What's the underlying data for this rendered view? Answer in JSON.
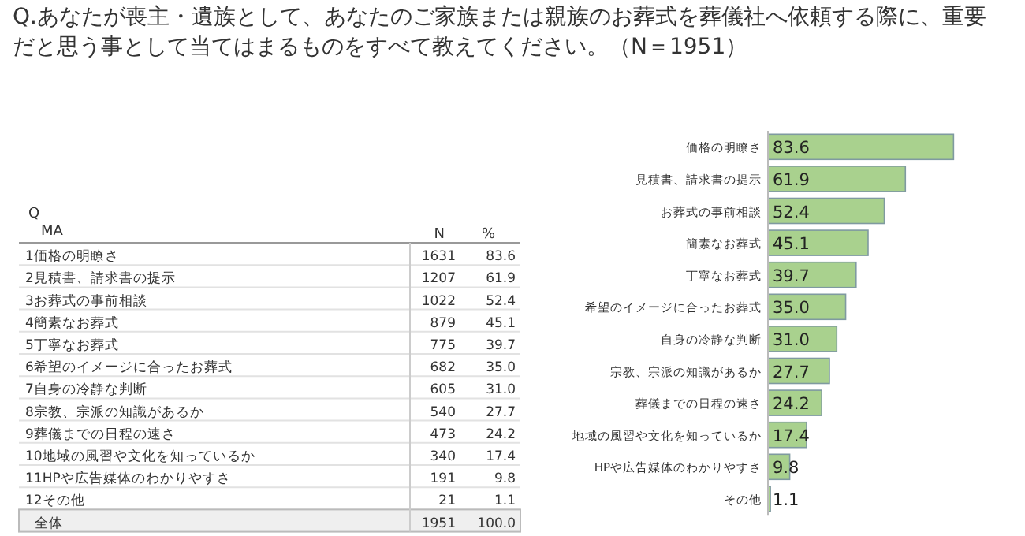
{
  "chart_data": [
    {
      "type": "other",
      "data_labels": true,
      "title": "Q.あなたが喪主・遺族として、あなたのご家族または親族のお葬式を葬儀社へ依頼する際に、重要だと思う事として当てはまるものをすべて教えてください。（N＝1951）",
      "annotations": [
        "Q",
        "MA"
      ],
      "categories": [
        "1価格の明瞭さ",
        "2見積書、請求書の提示",
        "3お葬式の事前相談",
        "4簡素なお葬式",
        "5丁寧なお葬式",
        "6希望のイメージに合ったお葬式",
        "7自身の冷静な判断",
        "8宗教、宗派の知識があるか",
        "9葬儀までの日程の速さ",
        "10地域の風習や文化を知っているか",
        "11HPや広告媒体のわかりやすさ",
        "12その他",
        "全体"
      ],
      "series": [
        {
          "name": "N",
          "values": [
            1631,
            1207,
            1022,
            879,
            775,
            682,
            605,
            540,
            473,
            340,
            191,
            21,
            1951
          ]
        },
        {
          "name": "%",
          "values": [
            83.6,
            61.9,
            52.4,
            45.1,
            39.7,
            35.0,
            31.0,
            27.7,
            24.2,
            17.4,
            9.8,
            1.1,
            100.0
          ],
          "value_labels": [
            "83.6",
            "61.9",
            "52.4",
            "45.1",
            "39.7",
            "35.0",
            "31.0",
            "27.7",
            "24.2",
            "17.4",
            "9.8",
            "1.1",
            "100.0"
          ]
        }
      ]
    },
    {
      "type": "bar",
      "orientation": "horizontal",
      "color": "#a9d18e",
      "categories": [
        "価格の明瞭さ",
        "見積書、請求書の提示",
        "お葬式の事前相談",
        "簡素なお葬式",
        "丁寧なお葬式",
        "希望のイメージに合ったお葬式",
        "自身の冷静な判断",
        "宗教、宗派の知識があるか",
        "葬儀までの日程の速さ",
        "地域の風習や文化を知っているか",
        "HPや広告媒体のわかりやすさ",
        "その他"
      ],
      "values": [
        83.6,
        61.9,
        52.4,
        45.1,
        39.7,
        35.0,
        31.0,
        27.7,
        24.2,
        17.4,
        9.8,
        1.1
      ],
      "value_labels": [
        "83.6",
        "61.9",
        "52.4",
        "45.1",
        "39.7",
        "35.0",
        "31.0",
        "27.7",
        "24.2",
        "17.4",
        "9.8",
        "1.1"
      ]
    }
  ]
}
